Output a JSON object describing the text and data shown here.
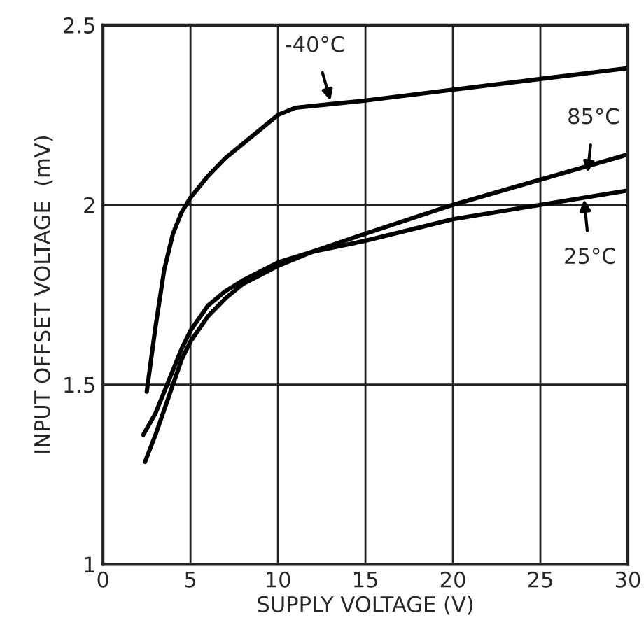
{
  "chart_data": {
    "type": "line",
    "xlabel": "SUPPLY VOLTAGE (V)",
    "ylabel": "INPUT OFFSET VOLTAGE  (mV)",
    "xlim": [
      0,
      30
    ],
    "xticks": [
      0,
      5,
      10,
      15,
      20,
      25,
      30
    ],
    "ylim": [
      1,
      2.5
    ],
    "yticks": [
      1,
      1.5,
      2,
      2.5
    ],
    "grid": true,
    "legend": false,
    "line_style": "solid",
    "marker": "none",
    "series": [
      {
        "color": "#000000",
        "x": [
          2.5,
          3,
          3.5,
          4,
          4.5,
          5,
          6,
          7,
          8,
          9,
          10,
          11,
          13,
          15,
          20,
          25,
          30
        ],
        "values": [
          1.48,
          1.66,
          1.82,
          1.92,
          1.98,
          2.02,
          2.08,
          2.13,
          2.17,
          2.21,
          2.25,
          2.27,
          2.28,
          2.29,
          2.32,
          2.35,
          2.38
        ]
      },
      {
        "color": "#000000",
        "x": [
          2.4,
          3,
          3.5,
          4,
          4.5,
          5,
          6,
          7,
          8,
          10,
          12,
          15,
          20,
          25,
          30
        ],
        "values": [
          1.285,
          1.36,
          1.43,
          1.5,
          1.57,
          1.62,
          1.69,
          1.74,
          1.78,
          1.83,
          1.87,
          1.92,
          2.0,
          2.07,
          2.14
        ]
      },
      {
        "color": "#000000",
        "x": [
          2.3,
          3,
          3.5,
          4,
          4.5,
          5,
          6,
          7,
          8,
          10,
          12,
          15,
          20,
          25,
          30
        ],
        "values": [
          1.36,
          1.42,
          1.48,
          1.54,
          1.6,
          1.65,
          1.72,
          1.76,
          1.79,
          1.84,
          1.87,
          1.9,
          1.96,
          2.0,
          2.04
        ]
      }
    ],
    "annotations": [
      {
        "text": "-40°C",
        "x": 13,
        "y": 2.29
      },
      {
        "text": "85°C",
        "x": 27.7,
        "y": 2.09
      },
      {
        "text": "25°C",
        "x": 27.5,
        "y": 2.015
      }
    ]
  }
}
